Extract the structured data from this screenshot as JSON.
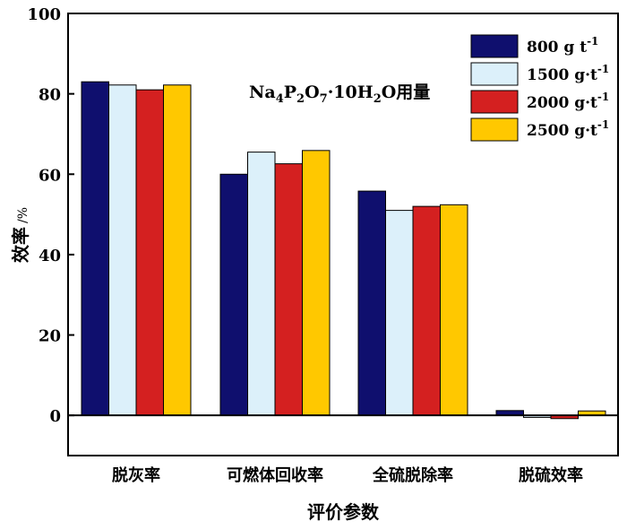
{
  "chart_data": {
    "type": "bar",
    "title": "",
    "annotation": {
      "base": "Na",
      "sub1": "4",
      "mid1": "P",
      "sub2": "2",
      "mid2": "O",
      "sub3": "7",
      "mid3": "·10H",
      "sub4": "2",
      "tail": "O用量"
    },
    "xlabel": "评价参数",
    "ylabel": "效率",
    "ylabel_unit": "/%",
    "ylim": [
      -10,
      100
    ],
    "yticks": [
      0,
      20,
      40,
      60,
      80,
      100
    ],
    "ytick_labels": [
      "0",
      "20",
      "40",
      "60",
      "80",
      "100"
    ],
    "categories": [
      "脱灰率",
      "可燃体回收率",
      "全硫脱除率",
      "脱硫效率"
    ],
    "series": [
      {
        "name": "800 g t",
        "sup": "-1",
        "color": "#0f0f6e",
        "values": [
          83,
          60,
          55.8,
          1.2
        ]
      },
      {
        "name": "1500 g·t",
        "sup": "-1",
        "color": "#dcf0fa",
        "values": [
          82.2,
          65.5,
          51,
          -0.5
        ]
      },
      {
        "name": "2000 g·t",
        "sup": "-1",
        "color": "#d42020",
        "values": [
          81,
          62.6,
          52,
          -0.8
        ]
      },
      {
        "name": "2500 g·t",
        "sup": "-1",
        "color": "#ffc800",
        "values": [
          82.2,
          65.9,
          52.4,
          1.1
        ]
      }
    ]
  }
}
